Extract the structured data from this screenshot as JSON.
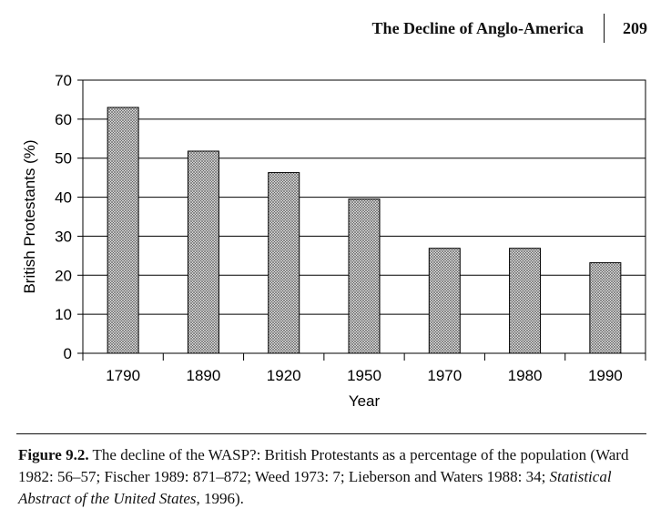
{
  "header": {
    "title": "The Decline of Anglo-America",
    "page_number": "209"
  },
  "chart_data": {
    "type": "bar",
    "categories": [
      "1790",
      "1890",
      "1920",
      "1950",
      "1970",
      "1980",
      "1990"
    ],
    "values": [
      63,
      51.8,
      46.3,
      39.5,
      26.9,
      26.9,
      23.2
    ],
    "xlabel": "Year",
    "ylabel": "British Protestants (%)",
    "ylim": [
      0,
      70
    ],
    "yticks": [
      0,
      10,
      20,
      30,
      40,
      50,
      60,
      70
    ],
    "grid": true,
    "bar_fill": "crosshatch",
    "colors": {
      "axis": "#000000",
      "bar_stroke": "#000000",
      "hatch": "#555555",
      "bar_bg": "#e4e4e4"
    }
  },
  "caption": {
    "label": "Figure 9.2.",
    "text_before_italic": " The decline of the WASP?: British Protestants as a percentage of the population (Ward 1982: 56–57; Fischer 1989: 871–872; Weed 1973: 7; Lieberson and Waters 1988: 34; ",
    "italic": "Statistical Abstract of the United States",
    "text_after_italic": ", 1996)."
  }
}
